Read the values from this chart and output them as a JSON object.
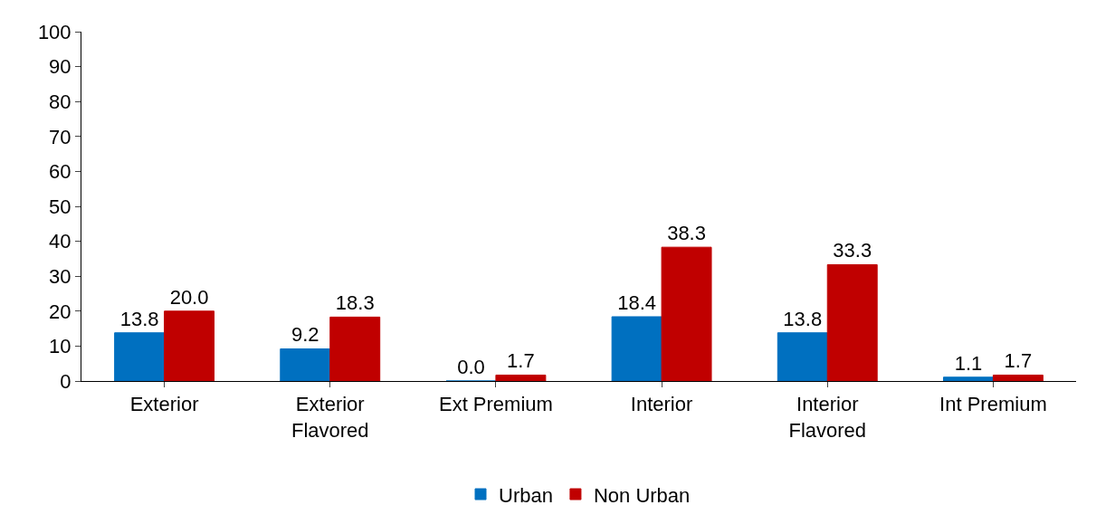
{
  "chart_data": {
    "type": "bar",
    "categories": [
      "Exterior",
      "Exterior\nFlavored",
      "Ext Premium",
      "Interior",
      "Interior\nFlavored",
      "Int Premium"
    ],
    "series": [
      {
        "name": "Urban",
        "color": "#0070c0",
        "values": [
          13.8,
          9.2,
          0.0,
          18.4,
          13.8,
          1.1
        ],
        "value_labels": [
          "13.8",
          "9.2",
          "0.0",
          "18.4",
          "13.8",
          "1.1"
        ]
      },
      {
        "name": "Non Urban",
        "color": "#c00000",
        "values": [
          20.0,
          18.3,
          1.7,
          38.3,
          33.3,
          1.7
        ],
        "value_labels": [
          "20.0",
          "18.3",
          "1.7",
          "38.3",
          "33.3",
          "1.7"
        ]
      }
    ],
    "ylim": [
      0,
      100
    ],
    "yticks": [
      0,
      10,
      20,
      30,
      40,
      50,
      60,
      70,
      80,
      90,
      100
    ],
    "legend": "bottom"
  }
}
